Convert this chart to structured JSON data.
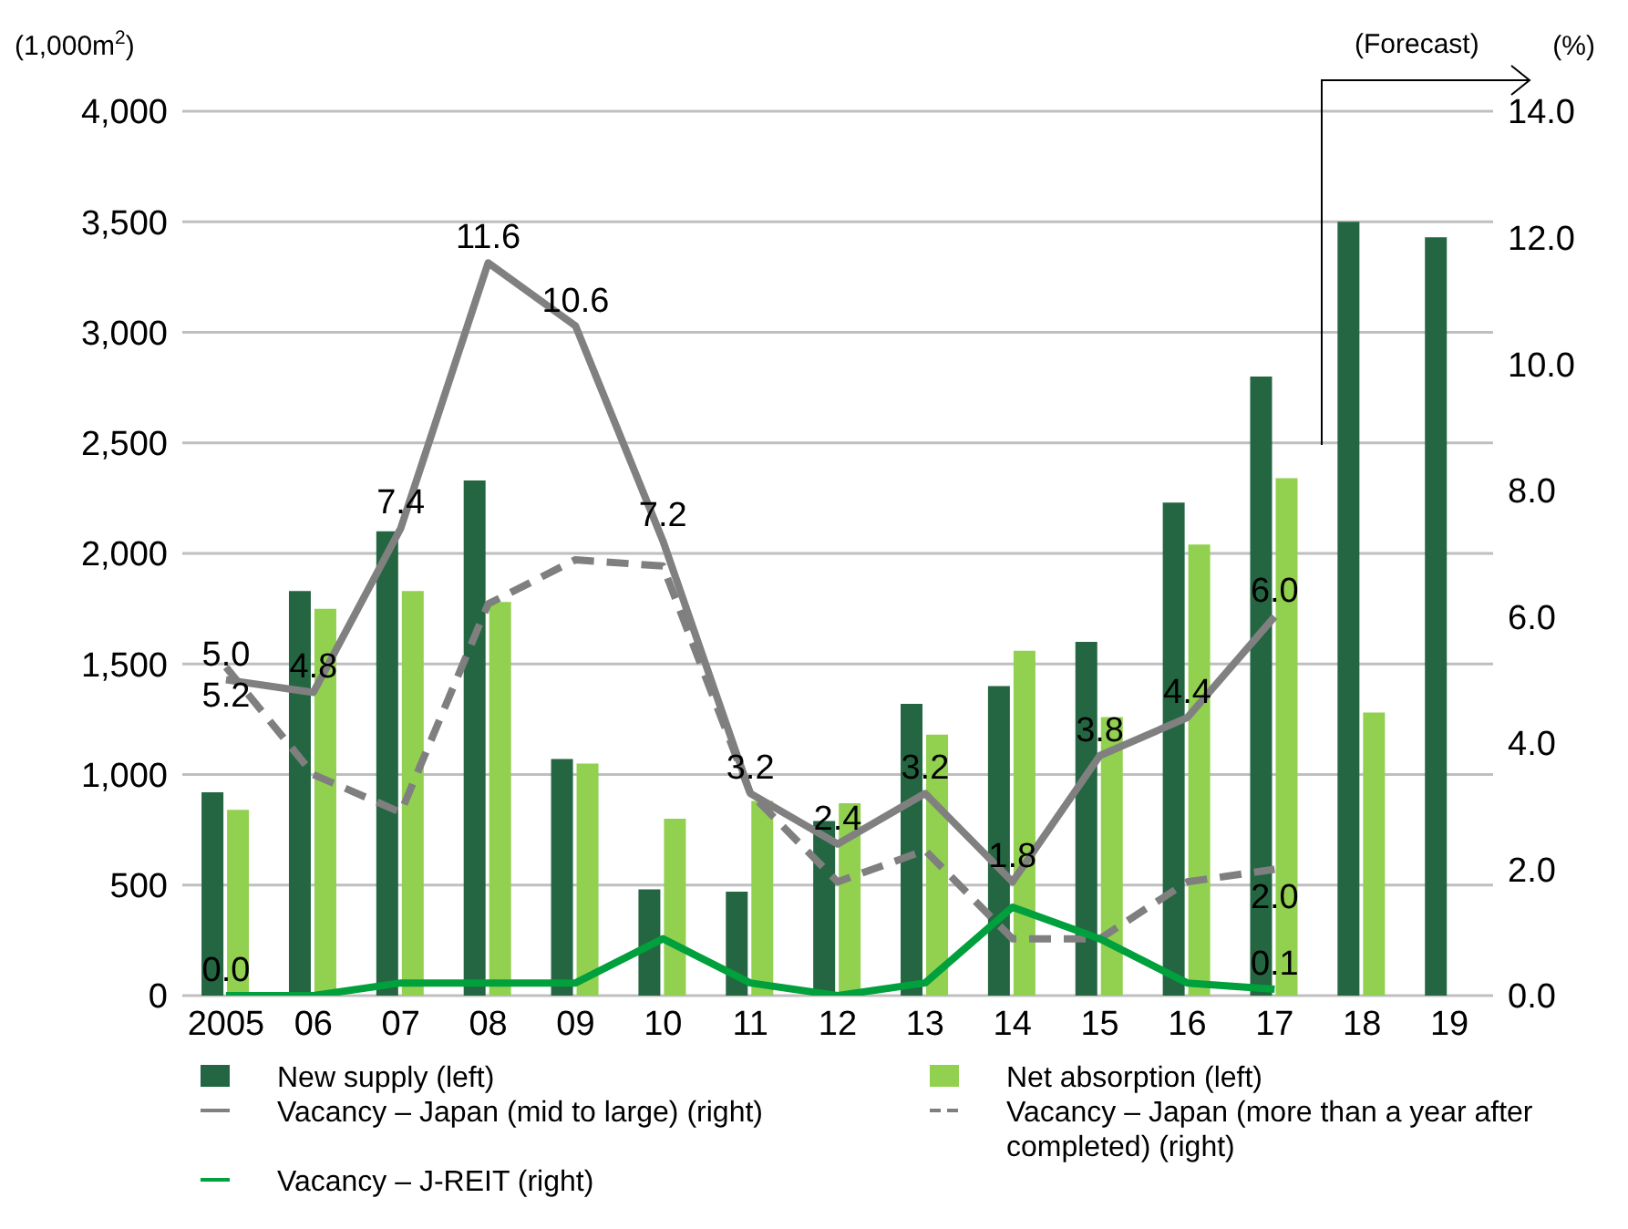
{
  "chart_data": {
    "type": "bar",
    "ylabel": "(1,000m$^{2}$)",
    "y2label": "(%)",
    "annotations": [
      "(Forecast)"
    ],
    "categories": [
      "2005",
      "06",
      "07",
      "08",
      "09",
      "10",
      "11",
      "12",
      "13",
      "14",
      "15",
      "16",
      "17",
      "18",
      "19"
    ],
    "series": [
      {
        "name": "New supply (left)",
        "color": "#236641",
        "values": [
          920,
          1830,
          2100,
          2330,
          1070,
          480,
          470,
          790,
          1320,
          1400,
          1600,
          2230,
          2800,
          3500,
          3430
        ]
      },
      {
        "name": "Net absorption (left)",
        "color": "#92d050",
        "values": [
          840,
          1750,
          1830,
          1780,
          1050,
          800,
          880,
          870,
          1180,
          1560,
          1260,
          2040,
          2340,
          1280,
          null
        ]
      },
      {
        "name": "Vacancy – Japan (mid to large) (right)",
        "type": "line",
        "axis": "y2",
        "color": "#808080",
        "line_style": "solid",
        "values": [
          5.0,
          4.8,
          7.4,
          11.6,
          10.6,
          7.2,
          3.2,
          2.4,
          3.2,
          1.8,
          3.8,
          4.4,
          6.0,
          null,
          null
        ],
        "value_labels": [
          "5.0",
          "4.8",
          "7.4",
          "11.6",
          "10.6",
          "7.2",
          "3.2",
          "2.4",
          "3.2",
          "1.8",
          "3.8",
          "4.4",
          "6.0",
          null,
          null
        ]
      },
      {
        "name": "Vacancy – Japan (more than a year after completed) (right)",
        "type": "line",
        "axis": "y2",
        "color": "#7f7f7f",
        "line_style": "dashed",
        "values": [
          5.2,
          3.5,
          2.9,
          6.2,
          6.9,
          6.8,
          3.2,
          1.8,
          2.3,
          0.9,
          0.9,
          1.8,
          2.0,
          null,
          null
        ],
        "value_labels": [
          "5.2",
          null,
          null,
          null,
          null,
          null,
          null,
          null,
          null,
          null,
          null,
          null,
          "2.0",
          null,
          null
        ]
      },
      {
        "name": "Vacancy – J-REIT (right)",
        "type": "line",
        "axis": "y2",
        "color": "#00a03c",
        "line_style": "solid",
        "values": [
          0.0,
          0.0,
          0.2,
          0.2,
          0.2,
          0.9,
          0.2,
          0.0,
          0.2,
          1.4,
          0.9,
          0.2,
          0.1,
          null,
          null
        ],
        "value_labels": [
          "0.0",
          null,
          null,
          null,
          null,
          null,
          null,
          null,
          null,
          null,
          null,
          null,
          "0.1",
          null,
          null
        ]
      }
    ],
    "ylim": [
      0,
      4000
    ],
    "yticks": [
      {
        "value": 0,
        "label": "0"
      },
      {
        "value": 500,
        "label": "500"
      },
      {
        "value": 1000,
        "label": "1,000"
      },
      {
        "value": 1500,
        "label": "1,500"
      },
      {
        "value": 2000,
        "label": "2,000"
      },
      {
        "value": 2500,
        "label": "2,500"
      },
      {
        "value": 3000,
        "label": "3,000"
      },
      {
        "value": 3500,
        "label": "3,500"
      },
      {
        "value": 4000,
        "label": "4,000"
      }
    ],
    "y2lim": [
      0,
      14
    ],
    "y2ticks": [
      {
        "value": 0,
        "label": "0.0"
      },
      {
        "value": 2,
        "label": "2.0"
      },
      {
        "value": 4,
        "label": "4.0"
      },
      {
        "value": 6,
        "label": "6.0"
      },
      {
        "value": 8,
        "label": "8.0"
      },
      {
        "value": 10,
        "label": "10.0"
      },
      {
        "value": 12,
        "label": "12.0"
      },
      {
        "value": 14,
        "label": "14.0"
      }
    ],
    "grid": "y",
    "legend": "bottom",
    "marker": "none"
  }
}
